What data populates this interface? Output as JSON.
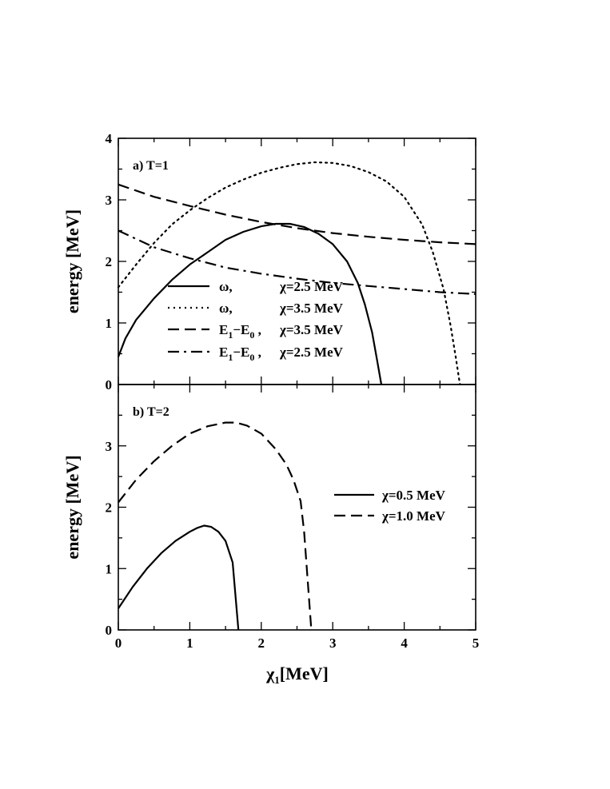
{
  "chart_data": [
    {
      "type": "line",
      "panel_label": "a) T=1",
      "xlabel": "",
      "ylabel": "energy [MeV]",
      "xlim": [
        0,
        5
      ],
      "ylim": [
        0,
        4
      ],
      "y_ticks": [
        "0",
        "1",
        "2",
        "3",
        "4"
      ],
      "legend_position": "lower-center",
      "series": [
        {
          "name_symbol": "ω,",
          "name_param": "χ=2.5 MeV",
          "style": "solid",
          "x": [
            0,
            0.1,
            0.25,
            0.5,
            0.75,
            1.0,
            1.25,
            1.5,
            1.75,
            2.0,
            2.2,
            2.4,
            2.6,
            2.8,
            3.0,
            3.2,
            3.35,
            3.45,
            3.55,
            3.62,
            3.68
          ],
          "y": [
            0.45,
            0.75,
            1.05,
            1.4,
            1.7,
            1.95,
            2.15,
            2.35,
            2.48,
            2.57,
            2.61,
            2.61,
            2.56,
            2.45,
            2.28,
            2.0,
            1.65,
            1.3,
            0.85,
            0.4,
            0.0
          ]
        },
        {
          "name_symbol": "ω,",
          "name_param": "χ=3.5 MeV",
          "style": "dotted",
          "x": [
            0,
            0.25,
            0.5,
            0.75,
            1.0,
            1.25,
            1.5,
            1.75,
            2.0,
            2.25,
            2.5,
            2.75,
            3.0,
            3.25,
            3.5,
            3.75,
            4.0,
            4.25,
            4.4,
            4.55,
            4.65,
            4.72,
            4.78
          ],
          "y": [
            1.58,
            1.95,
            2.3,
            2.6,
            2.83,
            3.03,
            3.2,
            3.33,
            3.44,
            3.52,
            3.58,
            3.61,
            3.6,
            3.55,
            3.45,
            3.3,
            3.05,
            2.6,
            2.15,
            1.55,
            0.95,
            0.45,
            0.0
          ]
        },
        {
          "name_symbol": "E1−E0 ,",
          "name_param": "χ=3.5 MeV",
          "style": "dashed",
          "x": [
            0,
            0.5,
            1.0,
            1.5,
            2.0,
            2.5,
            3.0,
            3.5,
            4.0,
            4.5,
            5.0
          ],
          "y": [
            3.25,
            3.05,
            2.9,
            2.76,
            2.64,
            2.54,
            2.46,
            2.4,
            2.35,
            2.31,
            2.28
          ]
        },
        {
          "name_symbol": "E1−E0 ,",
          "name_param": "χ=2.5 MeV",
          "style": "dashdot",
          "x": [
            0,
            0.5,
            1.0,
            1.5,
            2.0,
            2.5,
            3.0,
            3.5,
            4.0,
            4.5,
            5.0
          ],
          "y": [
            2.5,
            2.23,
            2.05,
            1.9,
            1.8,
            1.72,
            1.65,
            1.6,
            1.55,
            1.5,
            1.47
          ]
        }
      ]
    },
    {
      "type": "line",
      "panel_label": "b) T=2",
      "xlabel": "χ1[MeV]",
      "ylabel": "energy [MeV]",
      "xlim": [
        0,
        5
      ],
      "ylim": [
        0,
        4
      ],
      "x_ticks": [
        "0",
        "1",
        "2",
        "3",
        "4",
        "5"
      ],
      "y_ticks": [
        "0",
        "1",
        "2",
        "3"
      ],
      "legend_position": "center-right",
      "series": [
        {
          "name": "χ=0.5 MeV",
          "style": "solid",
          "x": [
            0,
            0.2,
            0.4,
            0.6,
            0.8,
            1.0,
            1.1,
            1.2,
            1.3,
            1.4,
            1.5,
            1.6,
            1.68
          ],
          "y": [
            0.35,
            0.7,
            1.0,
            1.25,
            1.45,
            1.6,
            1.66,
            1.7,
            1.68,
            1.6,
            1.45,
            1.1,
            0.0
          ]
        },
        {
          "name": "χ=1.0 MeV",
          "style": "dashed",
          "x": [
            0,
            0.25,
            0.5,
            0.75,
            1.0,
            1.25,
            1.5,
            1.65,
            1.8,
            2.0,
            2.2,
            2.35,
            2.45,
            2.55,
            2.6,
            2.65,
            2.7
          ],
          "y": [
            2.08,
            2.45,
            2.75,
            3.0,
            3.2,
            3.32,
            3.38,
            3.38,
            3.33,
            3.2,
            2.95,
            2.7,
            2.45,
            2.1,
            1.6,
            0.8,
            0.0
          ]
        }
      ]
    }
  ]
}
